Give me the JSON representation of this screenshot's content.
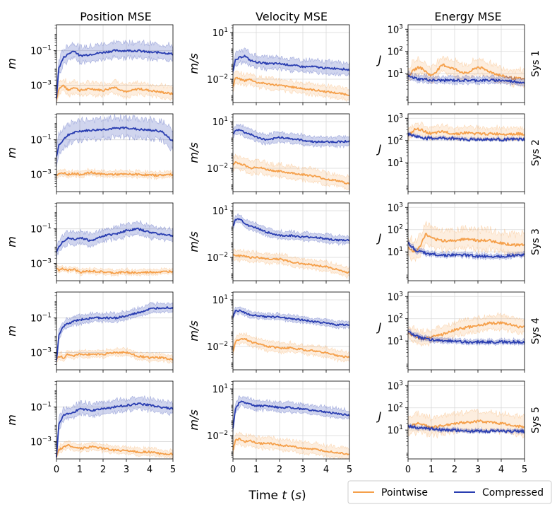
{
  "chart_data": {
    "type": "line",
    "x_range": [
      0,
      5
    ],
    "x_ticks": [
      "0",
      "1",
      "2",
      "3",
      "4",
      "5"
    ],
    "xlabel": "Time t (s)",
    "columns": [
      {
        "title": "Position MSE",
        "unit": "m",
        "ylim_log10": [
          -4,
          0.5
        ],
        "tick_exps": [
          -3,
          -1
        ],
        "tick_labels": [
          "10",
          "10"
        ],
        "tick_exp_labels": [
          "−3",
          "−1"
        ]
      },
      {
        "title": "Velocity MSE",
        "unit": "m/s",
        "ylim_log10": [
          -3.5,
          1.5
        ],
        "tick_exps": [
          -2,
          1
        ],
        "tick_labels": [
          "10",
          "10"
        ],
        "tick_exp_labels": [
          "−2",
          "1"
        ]
      },
      {
        "title": "Energy MSE",
        "unit": "J",
        "ylim_log10": [
          -0.3,
          3.2
        ],
        "tick_exps": [
          1,
          2,
          3
        ],
        "tick_labels": [
          "10",
          "10",
          "10"
        ],
        "tick_exp_labels": [
          "1",
          "2",
          "3"
        ]
      }
    ],
    "rows": [
      "Sys 1",
      "Sys 2",
      "Sys 3",
      "Sys 4",
      "Sys 5"
    ],
    "legend": {
      "position": "bottom-right",
      "entries": [
        "Pointwise",
        "Compressed"
      ]
    },
    "series_colors": {
      "Pointwise": "#f5a04b",
      "Compressed": "#2a3eb1"
    },
    "series_names": [
      "Pointwise",
      "Compressed"
    ],
    "t_knots": [
      0,
      0.1,
      0.3,
      0.5,
      0.75,
      1,
      1.5,
      2,
      2.5,
      3,
      3.5,
      4,
      4.5,
      5
    ],
    "panels": [
      [
        {
          "pointwise": [
            -3.8,
            -3.2,
            -3.0,
            -3.3,
            -3.1,
            -3.3,
            -3.2,
            -3.3,
            -3.1,
            -3.4,
            -3.2,
            -3.3,
            -3.4,
            -3.5
          ],
          "compressed": [
            -3.7,
            -2.0,
            -1.4,
            -1.2,
            -1.0,
            -1.3,
            -1.2,
            -1.1,
            -1.0,
            -1.0,
            -1.0,
            -1.1,
            -1.1,
            -1.2
          ],
          "pw_band": 0.7,
          "cp_band": 0.9
        },
        {
          "pointwise": [
            -2.5,
            -1.9,
            -2.0,
            -2.1,
            -2.0,
            -2.2,
            -2.3,
            -2.4,
            -2.5,
            -2.6,
            -2.7,
            -2.8,
            -2.9,
            -3.0
          ],
          "compressed": [
            -1.5,
            -0.8,
            -0.6,
            -0.5,
            -0.8,
            -0.9,
            -1.0,
            -1.0,
            -1.1,
            -1.2,
            -1.2,
            -1.3,
            -1.3,
            -1.4
          ],
          "pw_band": 0.7,
          "cp_band": 0.8
        },
        {
          "pointwise": [
            0.9,
            1.0,
            1.2,
            1.3,
            1.1,
            0.9,
            1.4,
            1.2,
            1.0,
            1.3,
            1.1,
            0.9,
            0.8,
            0.75
          ],
          "compressed": [
            0.9,
            0.85,
            0.8,
            0.75,
            0.75,
            0.7,
            0.7,
            0.7,
            0.7,
            0.7,
            0.7,
            0.7,
            0.65,
            0.6
          ],
          "pw_band": 0.7,
          "cp_band": 0.3
        }
      ],
      [
        {
          "pointwise": [
            -3.1,
            -3.0,
            -2.9,
            -3.0,
            -2.95,
            -3.0,
            -2.9,
            -3.0,
            -3.0,
            -3.0,
            -3.0,
            -3.05,
            -3.05,
            -3.0
          ],
          "compressed": [
            -2.0,
            -1.3,
            -1.0,
            -0.7,
            -0.6,
            -0.5,
            -0.45,
            -0.4,
            -0.35,
            -0.3,
            -0.4,
            -0.45,
            -0.5,
            -1.1
          ],
          "pw_band": 0.35,
          "cp_band": 1.1
        },
        {
          "pointwise": [
            -1.8,
            -1.6,
            -1.7,
            -1.8,
            -2.0,
            -1.9,
            -2.1,
            -2.2,
            -2.3,
            -2.4,
            -2.5,
            -2.7,
            -2.8,
            -3.0
          ],
          "compressed": [
            0.2,
            0.4,
            0.5,
            0.3,
            0.2,
            0.0,
            -0.2,
            0.0,
            -0.1,
            -0.2,
            -0.3,
            -0.3,
            -0.3,
            -0.25
          ],
          "pw_band": 0.8,
          "cp_band": 0.6
        },
        {
          "pointwise": [
            2.2,
            2.3,
            2.5,
            2.5,
            2.4,
            2.3,
            2.4,
            2.3,
            2.35,
            2.3,
            2.3,
            2.3,
            2.3,
            2.3
          ],
          "compressed": [
            2.3,
            2.25,
            2.2,
            2.15,
            2.1,
            2.1,
            2.1,
            2.1,
            2.05,
            2.05,
            2.05,
            2.05,
            2.05,
            2.05
          ],
          "pw_band": 0.5,
          "cp_band": 0.12
        }
      ],
      [
        {
          "pointwise": [
            -3.3,
            -3.4,
            -3.3,
            -3.4,
            -3.35,
            -3.5,
            -3.45,
            -3.5,
            -3.55,
            -3.5,
            -3.55,
            -3.5,
            -3.5,
            -3.45
          ],
          "compressed": [
            -2.3,
            -2.0,
            -1.7,
            -1.5,
            -1.6,
            -1.5,
            -1.7,
            -1.4,
            -1.3,
            -1.1,
            -1.0,
            -1.2,
            -1.3,
            -1.4
          ],
          "pw_band": 0.3,
          "cp_band": 0.7
        },
        {
          "pointwise": [
            -1.8,
            -1.9,
            -1.9,
            -1.9,
            -2.0,
            -2.0,
            -2.1,
            -2.1,
            -2.3,
            -2.4,
            -2.5,
            -2.6,
            -2.8,
            -3.0
          ],
          "compressed": [
            0.0,
            0.4,
            0.5,
            0.2,
            0.0,
            -0.1,
            -0.4,
            -0.6,
            -0.6,
            -0.7,
            -0.7,
            -0.8,
            -0.9,
            -0.9
          ],
          "pw_band": 0.6,
          "cp_band": 0.5
        },
        {
          "pointwise": [
            1.2,
            1.1,
            1.0,
            1.2,
            1.8,
            1.6,
            1.5,
            1.5,
            1.6,
            1.5,
            1.5,
            1.4,
            1.3,
            1.35
          ],
          "compressed": [
            1.4,
            1.3,
            1.1,
            1.0,
            0.95,
            0.9,
            0.85,
            0.85,
            0.85,
            0.8,
            0.8,
            0.8,
            0.85,
            0.85
          ],
          "pw_band": 0.9,
          "cp_band": 0.2
        }
      ],
      [
        {
          "pointwise": [
            -3.4,
            -3.2,
            -3.3,
            -3.1,
            -3.2,
            -3.1,
            -3.1,
            -3.1,
            -3.0,
            -3.0,
            -3.2,
            -3.3,
            -3.3,
            -3.4
          ],
          "compressed": [
            -3.5,
            -2.0,
            -1.5,
            -1.3,
            -1.2,
            -1.1,
            -1.0,
            -1.0,
            -1.0,
            -0.9,
            -0.7,
            -0.5,
            -0.4,
            -0.4
          ],
          "pw_band": 0.4,
          "cp_band": 0.5
        },
        {
          "pointwise": [
            -2.3,
            -1.7,
            -1.5,
            -1.5,
            -1.7,
            -1.8,
            -2.0,
            -2.1,
            -2.1,
            -2.2,
            -2.3,
            -2.4,
            -2.6,
            -2.7
          ],
          "compressed": [
            -0.1,
            0.3,
            0.3,
            0.2,
            0.0,
            0.0,
            -0.1,
            -0.1,
            -0.2,
            -0.3,
            -0.4,
            -0.5,
            -0.6,
            -0.6
          ],
          "pw_band": 0.6,
          "cp_band": 0.4
        },
        {
          "pointwise": [
            1.4,
            1.3,
            1.2,
            1.1,
            1.1,
            1.2,
            1.3,
            1.5,
            1.6,
            1.7,
            1.8,
            1.8,
            1.7,
            1.6
          ],
          "compressed": [
            1.45,
            1.35,
            1.25,
            1.15,
            1.1,
            1.05,
            1.0,
            1.0,
            0.95,
            0.95,
            0.95,
            0.95,
            0.95,
            0.95
          ],
          "pw_band": 0.6,
          "cp_band": 0.2
        }
      ],
      [
        {
          "pointwise": [
            -3.9,
            -3.5,
            -3.3,
            -3.2,
            -3.3,
            -3.4,
            -3.3,
            -3.4,
            -3.5,
            -3.5,
            -3.6,
            -3.6,
            -3.7,
            -3.7
          ],
          "compressed": [
            -3.9,
            -2.0,
            -1.5,
            -1.4,
            -1.3,
            -1.1,
            -1.2,
            -1.1,
            -1.0,
            -0.9,
            -0.8,
            -0.9,
            -1.0,
            -1.1
          ],
          "pw_band": 0.4,
          "cp_band": 0.7
        },
        {
          "pointwise": [
            -2.9,
            -2.3,
            -2.2,
            -2.4,
            -2.3,
            -2.5,
            -2.5,
            -2.6,
            -2.7,
            -2.8,
            -2.9,
            -3.0,
            -3.1,
            -3.2
          ],
          "compressed": [
            -1.5,
            -0.3,
            0.2,
            0.1,
            0.0,
            -0.1,
            -0.1,
            -0.2,
            -0.2,
            -0.3,
            -0.4,
            -0.5,
            -0.6,
            -0.7
          ],
          "pw_band": 0.7,
          "cp_band": 0.6
        },
        {
          "pointwise": [
            1.1,
            1.2,
            1.25,
            1.3,
            1.2,
            1.1,
            1.2,
            1.3,
            1.35,
            1.4,
            1.35,
            1.3,
            1.2,
            1.15
          ],
          "compressed": [
            1.15,
            1.15,
            1.12,
            1.1,
            1.08,
            1.05,
            1.0,
            1.0,
            0.95,
            0.95,
            0.95,
            0.95,
            0.95,
            0.95
          ],
          "pw_band": 0.8,
          "cp_band": 0.15
        }
      ]
    ]
  }
}
